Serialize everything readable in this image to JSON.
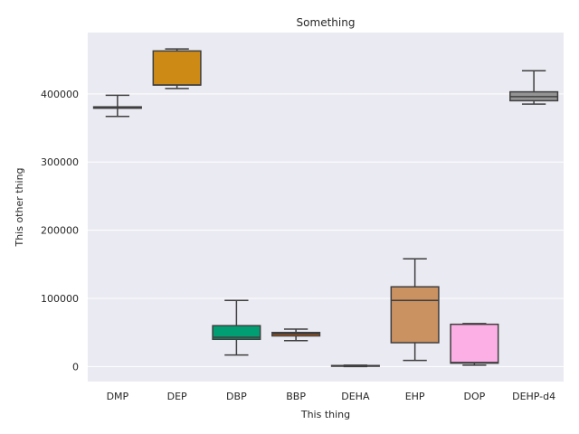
{
  "chart_data": {
    "type": "box",
    "title": "Something",
    "xlabel": "This thing",
    "ylabel": "This other thing",
    "ylim": [
      -22000,
      490000
    ],
    "yticks": [
      0,
      100000,
      200000,
      300000,
      400000
    ],
    "ytick_labels": [
      "0",
      "100000",
      "200000",
      "300000",
      "400000"
    ],
    "grid": true,
    "categories": [
      "DMP",
      "DEP",
      "DBP",
      "BBP",
      "DEHA",
      "EHP",
      "DOP",
      "DEHP-d4"
    ],
    "boxes": [
      {
        "label": "DMP",
        "whislo": 367000,
        "q1": 379000,
        "med": 380000,
        "q3": 381000,
        "whishi": 398000,
        "color": "#0173b2"
      },
      {
        "label": "DEP",
        "whislo": 408000,
        "q1": 413000,
        "med": 413000,
        "q3": 463000,
        "whishi": 466000,
        "color": "#cd8b16"
      },
      {
        "label": "DBP",
        "whislo": 17000,
        "q1": 40000,
        "med": 43000,
        "q3": 60000,
        "whishi": 97000,
        "color": "#029e73"
      },
      {
        "label": "BBP",
        "whislo": 38000,
        "q1": 45000,
        "med": 48000,
        "q3": 50000,
        "whishi": 55000,
        "color": "#d55e00"
      },
      {
        "label": "DEHA",
        "whislo": 0,
        "q1": 500,
        "med": 1000,
        "q3": 1500,
        "whishi": 2000,
        "color": "#cc78bc"
      },
      {
        "label": "EHP",
        "whislo": 9000,
        "q1": 35000,
        "med": 97000,
        "q3": 117000,
        "whishi": 158000,
        "color": "#ca9161"
      },
      {
        "label": "DOP",
        "whislo": 2000,
        "q1": 5000,
        "med": 6000,
        "q3": 62000,
        "whishi": 63000,
        "color": "#fbafe4"
      },
      {
        "label": "DEHP-d4",
        "whislo": 385000,
        "q1": 390000,
        "med": 396000,
        "q3": 403000,
        "whishi": 434000,
        "color": "#949494"
      }
    ]
  }
}
